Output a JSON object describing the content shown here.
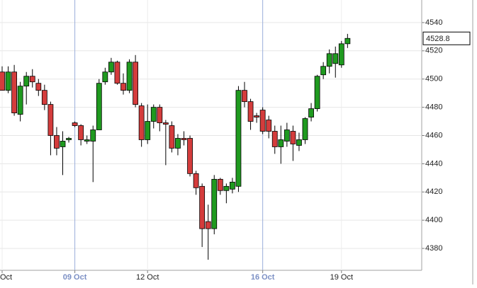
{
  "chart_data": {
    "type": "candlestick",
    "categories": [
      "Oct",
      null,
      null,
      null,
      null,
      null,
      null,
      null,
      null,
      null,
      null,
      null,
      "09 Oct",
      null,
      null,
      null,
      null,
      null,
      null,
      null,
      null,
      null,
      null,
      null,
      "12 Oct",
      null,
      null,
      null,
      null,
      null,
      null,
      null,
      null,
      null,
      null,
      null,
      null,
      null,
      null,
      null,
      null,
      null,
      null,
      "16 Oct",
      null,
      null,
      null,
      null,
      null,
      null,
      null,
      null,
      null,
      null,
      null,
      null,
      "19 Oct",
      null
    ],
    "highlighted_categories": [
      "09 Oct",
      "16 Oct"
    ],
    "open": [
      4505,
      4492,
      4505,
      4475,
      4495,
      4502,
      4497,
      4492,
      4482,
      4460,
      4452,
      4457,
      4469,
      4467,
      4456,
      4456,
      4464,
      4498,
      4505,
      4512,
      4497,
      4492,
      4512,
      4481,
      4457,
      4470,
      4480,
      4469,
      4467,
      4451,
      4458,
      4458,
      4433,
      4424,
      4399,
      4394,
      4429,
      4421,
      4422,
      4424,
      4492,
      4484,
      4474,
      4478,
      4471,
      4463,
      4452,
      4456,
      4463,
      4453,
      4457,
      4473,
      4479,
      4503,
      4509,
      4511,
      4510,
      4525
    ],
    "high": [
      4509,
      4509,
      4510,
      4498,
      4505,
      4507,
      4500,
      4496,
      4484,
      4466,
      4463,
      4459,
      4470,
      4468,
      4460,
      4467,
      4500,
      4508,
      4515,
      4513,
      4504,
      4514,
      4517,
      4483,
      4482,
      4482,
      4482,
      4471,
      4470,
      4461,
      4463,
      4460,
      4435,
      4426,
      4411,
      4432,
      4430,
      4426,
      4430,
      4495,
      4498,
      4486,
      4476,
      4480,
      4474,
      4467,
      4467,
      4469,
      4467,
      4462,
      4473,
      4483,
      4503,
      4512,
      4521,
      4523,
      4527,
      4532
    ],
    "low": [
      4492,
      4490,
      4474,
      4470,
      4482,
      4494,
      4488,
      4478,
      4446,
      4446,
      4432,
      4455,
      4466,
      4453,
      4454,
      4427,
      4464,
      4496,
      4503,
      4496,
      4489,
      4490,
      4480,
      4452,
      4454,
      4465,
      4463,
      4439,
      4448,
      4446,
      4453,
      4431,
      4418,
      4381,
      4372,
      4390,
      4418,
      4412,
      4419,
      4420,
      4480,
      4464,
      4469,
      4461,
      4458,
      4447,
      4440,
      4452,
      4442,
      4449,
      4454,
      4470,
      4477,
      4500,
      4504,
      4501,
      4508,
      4522
    ],
    "close": [
      4492,
      4505,
      4476,
      4495,
      4502,
      4498,
      4492,
      4482,
      4460,
      4451,
      4456,
      4458,
      4467,
      4457,
      4457,
      4464,
      4497,
      4505,
      4512,
      4497,
      4492,
      4512,
      4482,
      4457,
      4470,
      4480,
      4469,
      4468,
      4451,
      4458,
      4457,
      4433,
      4423,
      4394,
      4394,
      4429,
      4421,
      4424,
      4427,
      4492,
      4484,
      4470,
      4473,
      4463,
      4463,
      4452,
      4457,
      4464,
      4454,
      4457,
      4472,
      4479,
      4502,
      4509,
      4518,
      4518,
      4525,
      4528.8
    ],
    "up_color": "#1f9a1f",
    "down_color": "#d43c3c",
    "ylim": [
      4364.5,
      4556
    ],
    "yticks": [
      4380,
      4400,
      4420,
      4440,
      4460,
      4480,
      4500,
      4520,
      4540
    ],
    "grid": true
  }
}
